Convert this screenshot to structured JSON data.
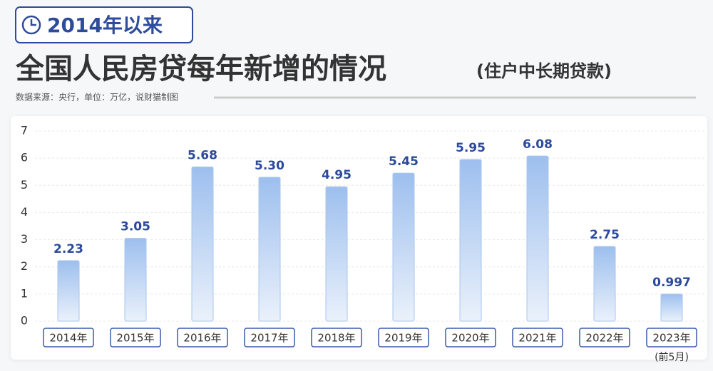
{
  "chart_data": {
    "type": "bar",
    "badge": "2014年以来",
    "title": "全国人民房贷每年新增的情况",
    "subtitle": "(住户中长期贷款)",
    "source": "数据来源：央行，单位：万亿，说财猫制图",
    "categories": [
      "2014年",
      "2015年",
      "2016年",
      "2017年",
      "2018年",
      "2019年",
      "2020年",
      "2021年",
      "2022年",
      "2023年"
    ],
    "footnote": "(前5月)",
    "values": [
      2.23,
      3.05,
      5.68,
      5.3,
      4.95,
      5.45,
      5.95,
      6.08,
      2.75,
      0.997
    ],
    "value_labels": [
      "2.23",
      "3.05",
      "5.68",
      "5.30",
      "4.95",
      "5.45",
      "5.95",
      "6.08",
      "2.75",
      "0.997"
    ],
    "color": "#a9c6ee",
    "ylim": [
      0,
      7
    ],
    "yticks": [
      0,
      1,
      2,
      3,
      4,
      5,
      6,
      7
    ],
    "grid": true
  }
}
